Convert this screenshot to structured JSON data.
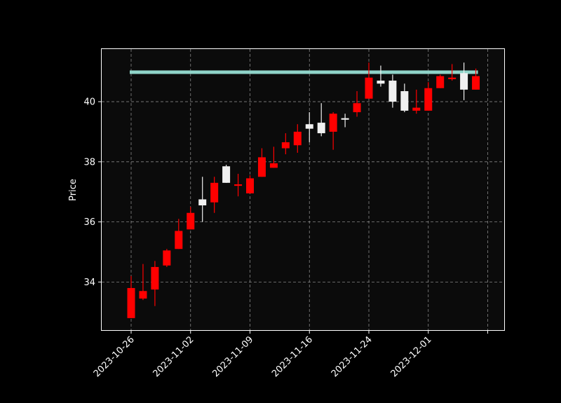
{
  "chart_data": {
    "type": "candlestick",
    "ylabel": "Price",
    "ylim": [
      32.4,
      41.75
    ],
    "yticks": [
      34,
      36,
      38,
      40
    ],
    "grid": true,
    "xticks": [
      {
        "index": 0,
        "label": "2023-10-26"
      },
      {
        "index": 5,
        "label": "2023-11-02"
      },
      {
        "index": 10,
        "label": "2023-11-09"
      },
      {
        "index": 15,
        "label": "2023-11-16"
      },
      {
        "index": 20,
        "label": "2023-11-24"
      },
      {
        "index": 25,
        "label": "2023-12-01"
      },
      {
        "index": 30,
        "label": ""
      }
    ],
    "up_color": "#f0f0f0",
    "down_color": "#ff0000",
    "background_color": "#0b0b0b",
    "hline": {
      "value": 40.98,
      "color": "#8fd3c8"
    },
    "candles": [
      {
        "date": "2023-10-26",
        "open": 33.8,
        "high": 34.2,
        "low": 32.8,
        "close": 32.8
      },
      {
        "date": "2023-10-27",
        "open": 33.7,
        "high": 34.6,
        "low": 33.4,
        "close": 33.45
      },
      {
        "date": "2023-10-30",
        "open": 34.5,
        "high": 34.7,
        "low": 33.2,
        "close": 33.75
      },
      {
        "date": "2023-10-31",
        "open": 35.05,
        "high": 35.1,
        "low": 34.5,
        "close": 34.55
      },
      {
        "date": "2023-11-01",
        "open": 35.7,
        "high": 36.1,
        "low": 35.1,
        "close": 35.1
      },
      {
        "date": "2023-11-02",
        "open": 36.3,
        "high": 36.5,
        "low": 35.75,
        "close": 35.75
      },
      {
        "date": "2023-11-03",
        "open": 36.55,
        "high": 37.5,
        "low": 36.0,
        "close": 36.75
      },
      {
        "date": "2023-11-06",
        "open": 37.3,
        "high": 37.5,
        "low": 36.3,
        "close": 36.65
      },
      {
        "date": "2023-11-07",
        "open": 37.3,
        "high": 37.9,
        "low": 37.3,
        "close": 37.85
      },
      {
        "date": "2023-11-08",
        "open": 37.25,
        "high": 37.6,
        "low": 36.85,
        "close": 37.2
      },
      {
        "date": "2023-11-09",
        "open": 37.45,
        "high": 37.55,
        "low": 36.95,
        "close": 36.95
      },
      {
        "date": "2023-11-10",
        "open": 38.15,
        "high": 38.45,
        "low": 37.5,
        "close": 37.5
      },
      {
        "date": "2023-11-13",
        "open": 37.95,
        "high": 38.5,
        "low": 37.8,
        "close": 37.8
      },
      {
        "date": "2023-11-14",
        "open": 38.65,
        "high": 38.95,
        "low": 38.25,
        "close": 38.45
      },
      {
        "date": "2023-11-15",
        "open": 39.0,
        "high": 39.25,
        "low": 38.3,
        "close": 38.55
      },
      {
        "date": "2023-11-16",
        "open": 39.1,
        "high": 39.65,
        "low": 38.65,
        "close": 39.25
      },
      {
        "date": "2023-11-17",
        "open": 38.95,
        "high": 39.95,
        "low": 38.85,
        "close": 39.3
      },
      {
        "date": "2023-11-20",
        "open": 39.6,
        "high": 39.65,
        "low": 38.4,
        "close": 39.0
      },
      {
        "date": "2023-11-21",
        "open": 39.4,
        "high": 39.6,
        "low": 39.15,
        "close": 39.45
      },
      {
        "date": "2023-11-22",
        "open": 39.95,
        "high": 40.35,
        "low": 39.5,
        "close": 39.65
      },
      {
        "date": "2023-11-24",
        "open": 40.8,
        "high": 41.3,
        "low": 40.1,
        "close": 40.1
      },
      {
        "date": "2023-11-27",
        "open": 40.6,
        "high": 41.2,
        "low": 40.5,
        "close": 40.7
      },
      {
        "date": "2023-11-28",
        "open": 40.0,
        "high": 40.9,
        "low": 39.8,
        "close": 40.7
      },
      {
        "date": "2023-11-29",
        "open": 39.7,
        "high": 40.6,
        "low": 39.65,
        "close": 40.35
      },
      {
        "date": "2023-11-30",
        "open": 39.8,
        "high": 40.4,
        "low": 39.6,
        "close": 39.7
      },
      {
        "date": "2023-12-01",
        "open": 40.45,
        "high": 40.65,
        "low": 39.7,
        "close": 39.7
      },
      {
        "date": "2023-12-04",
        "open": 40.85,
        "high": 40.9,
        "low": 40.45,
        "close": 40.45
      },
      {
        "date": "2023-12-05",
        "open": 40.8,
        "high": 41.25,
        "low": 40.7,
        "close": 40.75
      },
      {
        "date": "2023-12-06",
        "open": 40.4,
        "high": 41.3,
        "low": 40.05,
        "close": 40.95
      },
      {
        "date": "2023-12-07",
        "open": 40.85,
        "high": 41.1,
        "low": 40.4,
        "close": 40.4
      }
    ]
  }
}
